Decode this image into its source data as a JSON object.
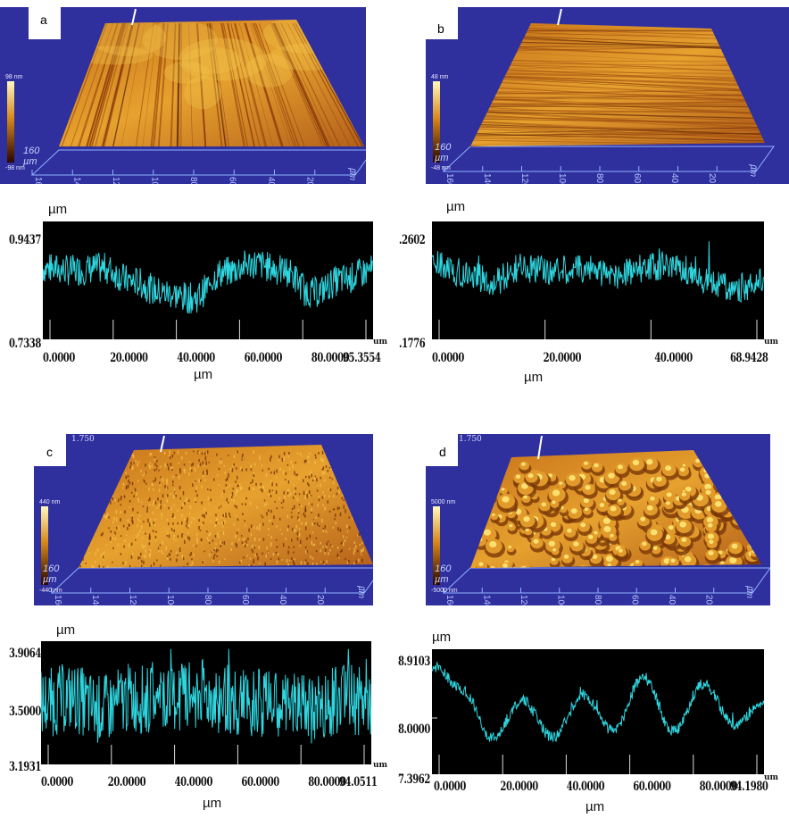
{
  "figure": {
    "panels": [
      {
        "id": "a",
        "label": "a",
        "scan": {
          "scale_top": "98 nm",
          "scale_bottom": "-98 nm",
          "scan_unit": "160\nµm",
          "axis_ticks": [
            "160",
            "140",
            "120",
            "100",
            "80",
            "60",
            "40",
            "20"
          ],
          "axis_unit": "µm"
        },
        "profile": {
          "y_unit": "µm",
          "y_top": "0.9437",
          "y_bottom": "0.7338",
          "x_ticks": [
            "0.0000",
            "20.0000",
            "40.0000",
            "60.0000",
            "80.0000",
            "95.3554"
          ],
          "x_end_unit": "um",
          "x_unit": "µm",
          "trend": [
            0.62,
            0.6,
            0.62,
            0.5,
            0.4,
            0.35,
            0.58,
            0.66,
            0.6,
            0.4,
            0.52,
            0.6
          ]
        }
      },
      {
        "id": "b",
        "label": "b",
        "scan": {
          "scale_top": "48 nm",
          "scale_bottom": "-48 nm",
          "scan_unit": "160\nµm",
          "axis_ticks": [
            "160",
            "140",
            "120",
            "100",
            "80",
            "60",
            "40",
            "20"
          ],
          "axis_unit": "µm"
        },
        "profile": {
          "y_unit": "µm",
          "y_top": ".2602",
          "y_bottom": ".1776",
          "x_ticks": [
            "0.0000",
            "20.0000",
            "40.0000",
            "68.9428"
          ],
          "x_end_unit": "um",
          "x_unit": "µm",
          "trend": [
            0.66,
            0.58,
            0.5,
            0.62,
            0.6,
            0.62,
            0.56,
            0.62,
            0.66,
            0.52,
            0.44,
            0.5
          ]
        }
      },
      {
        "id": "c",
        "label": "c",
        "scan": {
          "top_value": "1.750",
          "scale_top": "440 nm",
          "scale_bottom": "-440 nm",
          "scan_unit": "160\nµm",
          "axis_ticks": [
            "160",
            "140",
            "120",
            "100",
            "80",
            "60",
            "40",
            "20"
          ],
          "axis_unit": "µm"
        },
        "profile": {
          "y_unit": "µm",
          "y_top": "3.9064",
          "y_mid": "3.5000",
          "y_bottom": "3.1931",
          "x_ticks": [
            "0.0000",
            "20.0000",
            "40.0000",
            "60.0000",
            "80.0000",
            "94.0511"
          ],
          "x_end_unit": "um",
          "x_unit": "µm",
          "trend": [
            0.5,
            0.55,
            0.45,
            0.55,
            0.5,
            0.6,
            0.55,
            0.5,
            0.5,
            0.45,
            0.55,
            0.5
          ]
        }
      },
      {
        "id": "d",
        "label": "d",
        "scan": {
          "top_value": "1.750",
          "scale_top": "5000 nm",
          "scale_bottom": "-5000 nm",
          "scan_unit": "160\nµm",
          "axis_ticks": [
            "160",
            "140",
            "120",
            "100",
            "80",
            "60",
            "40",
            "20"
          ],
          "axis_unit": "µm"
        },
        "profile": {
          "y_unit": "µm",
          "y_top": "8.9103",
          "y_mid": "8.0000",
          "y_bottom": "7.3962",
          "x_ticks": [
            "0.0000",
            "20.0000",
            "40.0000",
            "60.0000",
            "80.0000",
            "94.1980"
          ],
          "x_end_unit": "um",
          "x_unit": "µm",
          "trend": [
            0.9,
            0.7,
            0.3,
            0.6,
            0.3,
            0.65,
            0.35,
            0.8,
            0.35,
            0.75,
            0.4,
            0.6
          ]
        }
      }
    ]
  },
  "colors": {
    "scan_background": "#2f2f9e",
    "profile_background": "#000000",
    "profile_trace": "#2fd6e0",
    "axis_grid": "#8fb4ff"
  }
}
